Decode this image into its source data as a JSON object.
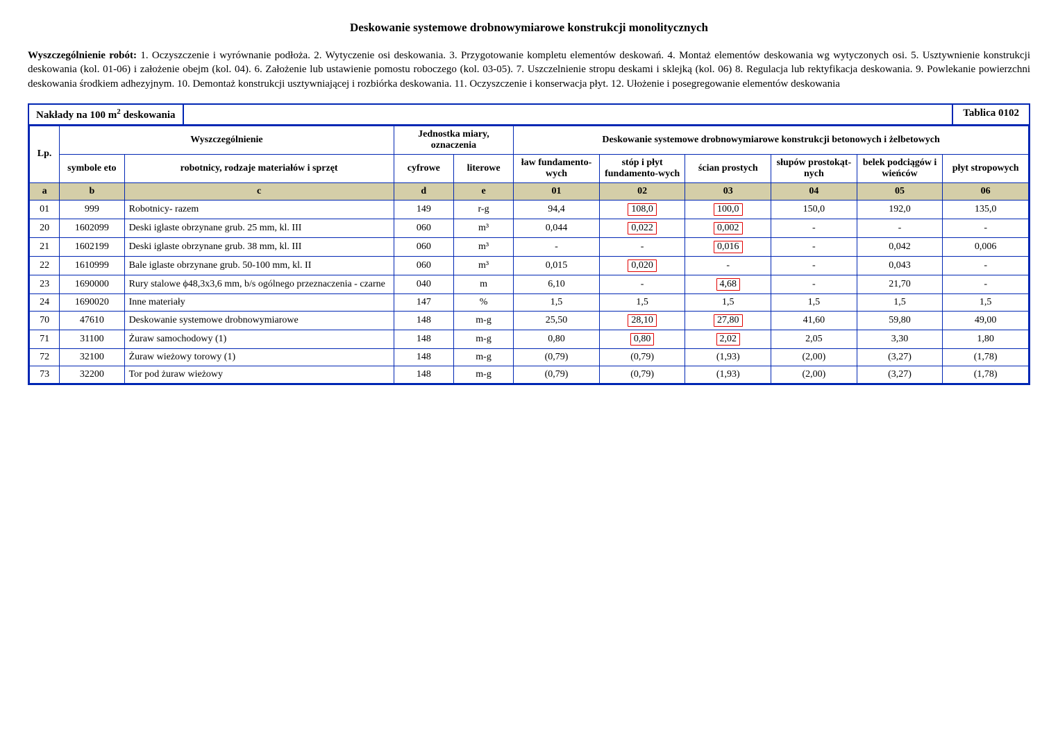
{
  "title": "Deskowanie systemowe drobnowymiarowe konstrukcji monolitycznych",
  "description_lead": "Wyszczególnienie robót:",
  "description_body": " 1. Oczyszczenie i wyrównanie podłoża. 2. Wytyczenie osi deskowania. 3. Przygotowanie kompletu elementów deskowań. 4. Montaż elementów deskowania wg wytyczonych osi. 5. Usztywnienie konstrukcji deskowania (kol. 01-06) i założenie obejm (kol. 04). 6. Założenie lub ustawienie pomostu roboczego (kol. 03-05). 7. Uszczelnienie stropu deskami i sklejką (kol. 06) 8. Regulacja lub rektyfikacja deskowania. 9. Powlekanie powierzchni deskowania środkiem adhezyjnym. 10. Demontaż konstrukcji usztywniającej i rozbiórka deskowania. 11. Oczyszczenie i konserwacja płyt.  12. Ułożenie i posegregowanie elementów deskowania",
  "caption_left_pre": "Nakłady na 100 m",
  "caption_left_sup": "2",
  "caption_left_post": " deskowania",
  "caption_right": "Tablica 0102",
  "headers": {
    "lp": "Lp.",
    "wyszcz": "Wyszczególnienie",
    "jm": "Jednostka miary, oznaczenia",
    "deskowanie": "Deskowanie systemowe drobnowymiarowe konstrukcji betonowych i żelbetowych",
    "sym": "symbole eto",
    "rob": "robotnicy, rodzaje materiałów i sprzęt",
    "cyfr": "cyfrowe",
    "lit": "literowe",
    "c01": "ław fundamento-wych",
    "c02": "stóp i płyt fundamento-wych",
    "c03": "ścian prostych",
    "c04": "słupów prostokąt-nych",
    "c05": "belek podciągów i wieńców",
    "c06": "płyt stropowych"
  },
  "codes": {
    "a": "a",
    "b": "b",
    "c": "c",
    "d": "d",
    "e": "e",
    "c01": "01",
    "c02": "02",
    "c03": "03",
    "c04": "04",
    "c05": "05",
    "c06": "06"
  },
  "rows": [
    {
      "lp": "01",
      "sym": "999",
      "mat": "Robotnicy- razem",
      "cyfr": "149",
      "lit": "r-g",
      "v": [
        "94,4",
        "108,0",
        "100,0",
        "150,0",
        "192,0",
        "135,0"
      ],
      "hl": [
        false,
        true,
        true,
        false,
        false,
        false
      ]
    },
    {
      "lp": "20",
      "sym": "1602099",
      "mat": "Deski iglaste obrzynane grub. 25 mm, kl. III",
      "cyfr": "060",
      "lit": "m³",
      "v": [
        "0,044",
        "0,022",
        "0,002",
        "-",
        "-",
        "-"
      ],
      "hl": [
        false,
        true,
        true,
        false,
        false,
        false
      ]
    },
    {
      "lp": "21",
      "sym": "1602199",
      "mat": "Deski iglaste obrzynane grub. 38 mm, kl. III",
      "cyfr": "060",
      "lit": "m³",
      "v": [
        "-",
        "-",
        "0,016",
        "-",
        "0,042",
        "0,006"
      ],
      "hl": [
        false,
        false,
        true,
        false,
        false,
        false
      ]
    },
    {
      "lp": "22",
      "sym": "1610999",
      "mat": "Bale iglaste obrzynane grub. 50-100 mm, kl. II",
      "cyfr": "060",
      "lit": "m³",
      "v": [
        "0,015",
        "0,020",
        "-",
        "-",
        "0,043",
        "-"
      ],
      "hl": [
        false,
        true,
        false,
        false,
        false,
        false
      ]
    },
    {
      "lp": "23",
      "sym": "1690000",
      "mat": "Rury stalowe  ϕ48,3x3,6 mm, b/s ogólnego przeznaczenia - czarne",
      "cyfr": "040",
      "lit": "m",
      "v": [
        "6,10",
        "-",
        "4,68",
        "-",
        "21,70",
        "-"
      ],
      "hl": [
        false,
        false,
        true,
        false,
        false,
        false
      ]
    },
    {
      "lp": "24",
      "sym": "1690020",
      "mat": "Inne materiały",
      "cyfr": "147",
      "lit": "%",
      "v": [
        "1,5",
        "1,5",
        "1,5",
        "1,5",
        "1,5",
        "1,5"
      ],
      "hl": [
        false,
        false,
        false,
        false,
        false,
        false
      ]
    },
    {
      "lp": "70",
      "sym": "47610",
      "mat": "Deskowanie systemowe drobnowymiarowe",
      "cyfr": "148",
      "lit": "m-g",
      "v": [
        "25,50",
        "28,10",
        "27,80",
        "41,60",
        "59,80",
        "49,00"
      ],
      "hl": [
        false,
        true,
        true,
        false,
        false,
        false
      ]
    },
    {
      "lp": "71",
      "sym": "31100",
      "mat": "Żuraw samochodowy (1)",
      "cyfr": "148",
      "lit": "m-g",
      "v": [
        "0,80",
        "0,80",
        "2,02",
        "2,05",
        "3,30",
        "1,80"
      ],
      "hl": [
        false,
        true,
        true,
        false,
        false,
        false
      ]
    },
    {
      "lp": "72",
      "sym": "32100",
      "mat": "Żuraw wieżowy torowy (1)",
      "cyfr": "148",
      "lit": "m-g",
      "v": [
        "(0,79)",
        "(0,79)",
        "(1,93)",
        "(2,00)",
        "(3,27)",
        "(1,78)"
      ],
      "hl": [
        false,
        false,
        false,
        false,
        false,
        false
      ]
    },
    {
      "lp": "73",
      "sym": "32200",
      "mat": "Tor pod żuraw wieżowy",
      "cyfr": "148",
      "lit": "m-g",
      "v": [
        "(0,79)",
        "(0,79)",
        "(1,93)",
        "(2,00)",
        "(3,27)",
        "(1,78)"
      ],
      "hl": [
        false,
        false,
        false,
        false,
        false,
        false
      ]
    }
  ]
}
